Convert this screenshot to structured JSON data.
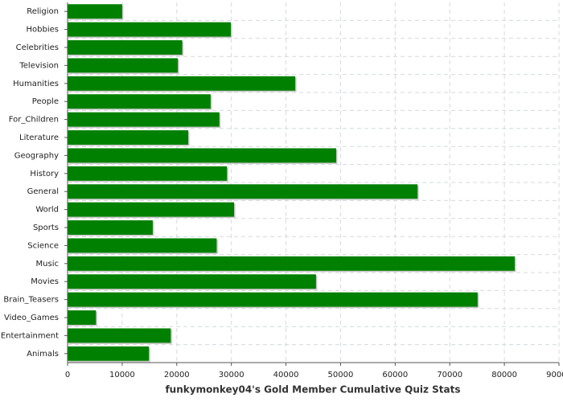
{
  "chart_data": {
    "type": "bar",
    "orientation": "horizontal",
    "xlabel": "funkymonkey04's Gold Member Cumulative Quiz Stats",
    "categories": [
      "Religion",
      "Hobbies",
      "Celebrities",
      "Television",
      "Humanities",
      "People",
      "For_Children",
      "Literature",
      "Geography",
      "History",
      "General",
      "World",
      "Sports",
      "Science",
      "Music",
      "Movies",
      "Brain_Teasers",
      "Video_Games",
      "Entertainment",
      "Animals"
    ],
    "values": [
      10000,
      29900,
      21000,
      20200,
      41700,
      26200,
      27800,
      22100,
      49200,
      29200,
      64100,
      30500,
      15600,
      27300,
      81900,
      45500,
      75100,
      5200,
      18900,
      14900
    ],
    "color": "#008000",
    "xlim": [
      0,
      90000
    ],
    "xticks": [
      0,
      10000,
      20000,
      30000,
      40000,
      50000,
      60000,
      70000,
      80000,
      90000
    ],
    "grid": true
  }
}
